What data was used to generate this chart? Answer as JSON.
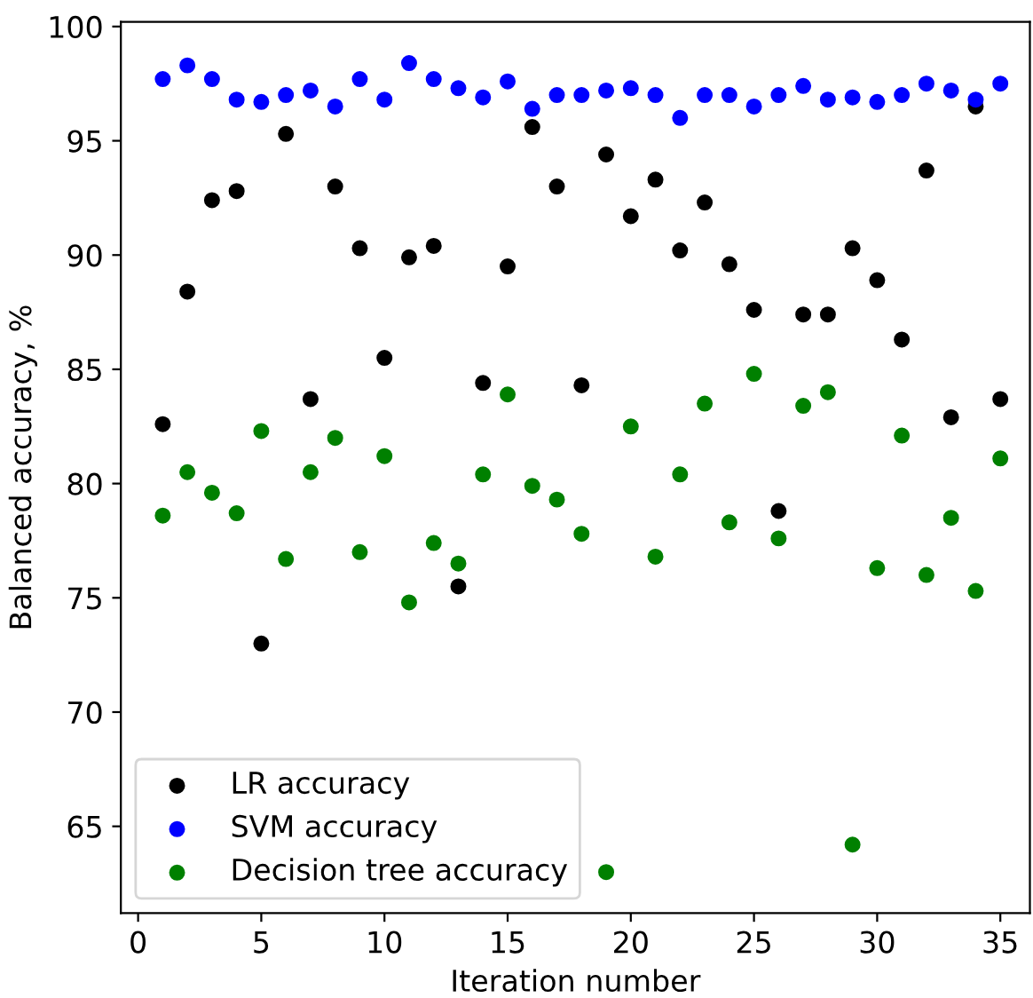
{
  "chart_data": {
    "type": "scatter",
    "xlabel": "Iteration number",
    "ylabel": "Balanced accuracy, %",
    "x": [
      1,
      2,
      3,
      4,
      5,
      6,
      7,
      8,
      9,
      10,
      11,
      12,
      13,
      14,
      15,
      16,
      17,
      18,
      19,
      20,
      21,
      22,
      23,
      24,
      25,
      26,
      27,
      28,
      29,
      30,
      31,
      32,
      33,
      34,
      35
    ],
    "series": [
      {
        "name": "LR accuracy",
        "color": "#000000",
        "values": [
          82.6,
          88.4,
          92.4,
          92.8,
          73.0,
          95.3,
          83.7,
          93.0,
          90.3,
          85.5,
          89.9,
          90.4,
          75.5,
          84.4,
          89.5,
          95.6,
          93.0,
          84.3,
          94.4,
          91.7,
          93.3,
          90.2,
          92.3,
          89.6,
          87.6,
          78.8,
          87.4,
          87.4,
          90.3,
          88.9,
          86.3,
          93.7,
          82.9,
          96.5,
          83.7
        ]
      },
      {
        "name": "SVM accuracy",
        "color": "#0000ff",
        "values": [
          97.7,
          98.3,
          97.7,
          96.8,
          96.7,
          97.0,
          97.2,
          96.5,
          97.7,
          96.8,
          98.4,
          97.7,
          97.3,
          96.9,
          97.6,
          96.4,
          97.0,
          97.0,
          97.2,
          97.3,
          97.0,
          96.0,
          97.0,
          97.0,
          96.5,
          97.0,
          97.4,
          96.8,
          96.9,
          96.7,
          97.0,
          97.5,
          97.2,
          96.8,
          97.5
        ]
      },
      {
        "name": "Decision tree accuracy",
        "color": "#008000",
        "values": [
          78.6,
          80.5,
          79.6,
          78.7,
          82.3,
          76.7,
          80.5,
          82.0,
          77.0,
          81.2,
          74.8,
          77.4,
          76.5,
          80.4,
          83.9,
          79.9,
          79.3,
          77.8,
          63.0,
          82.5,
          76.8,
          80.4,
          83.5,
          78.3,
          84.8,
          77.6,
          83.4,
          84.0,
          64.2,
          76.3,
          82.1,
          76.0,
          78.5,
          75.3,
          81.1
        ]
      }
    ],
    "xlim": [
      -0.7,
      36.2
    ],
    "ylim": [
      61.2,
      100.2
    ],
    "xticks": [
      0,
      5,
      10,
      15,
      20,
      25,
      30,
      35
    ],
    "yticks": [
      65,
      70,
      75,
      80,
      85,
      90,
      95,
      100
    ],
    "marker": "circle",
    "grid": false,
    "legend": "bottom left"
  }
}
